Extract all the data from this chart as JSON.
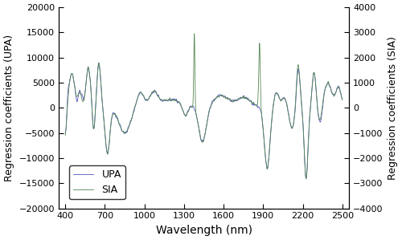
{
  "xlabel": "Wavelength (nm)",
  "ylabel_left": "Regression coefficients (UPA)",
  "ylabel_right": "Regression coefficients (SIA)",
  "xlim": [
    350,
    2550
  ],
  "ylim_left": [
    -20000,
    20000
  ],
  "ylim_right": [
    -4000,
    4000
  ],
  "xticks": [
    400,
    700,
    1000,
    1300,
    1600,
    1900,
    2200,
    2500
  ],
  "yticks_left": [
    -20000,
    -15000,
    -10000,
    -5000,
    0,
    5000,
    10000,
    15000,
    20000
  ],
  "yticks_right": [
    -4000,
    -3000,
    -2000,
    -1000,
    0,
    1000,
    2000,
    3000,
    4000
  ],
  "color_upa": "#5555bb",
  "color_sia": "#558855",
  "legend_labels": [
    "UPA",
    "SIA"
  ],
  "figsize": [
    5.0,
    2.99
  ],
  "dpi": 100
}
